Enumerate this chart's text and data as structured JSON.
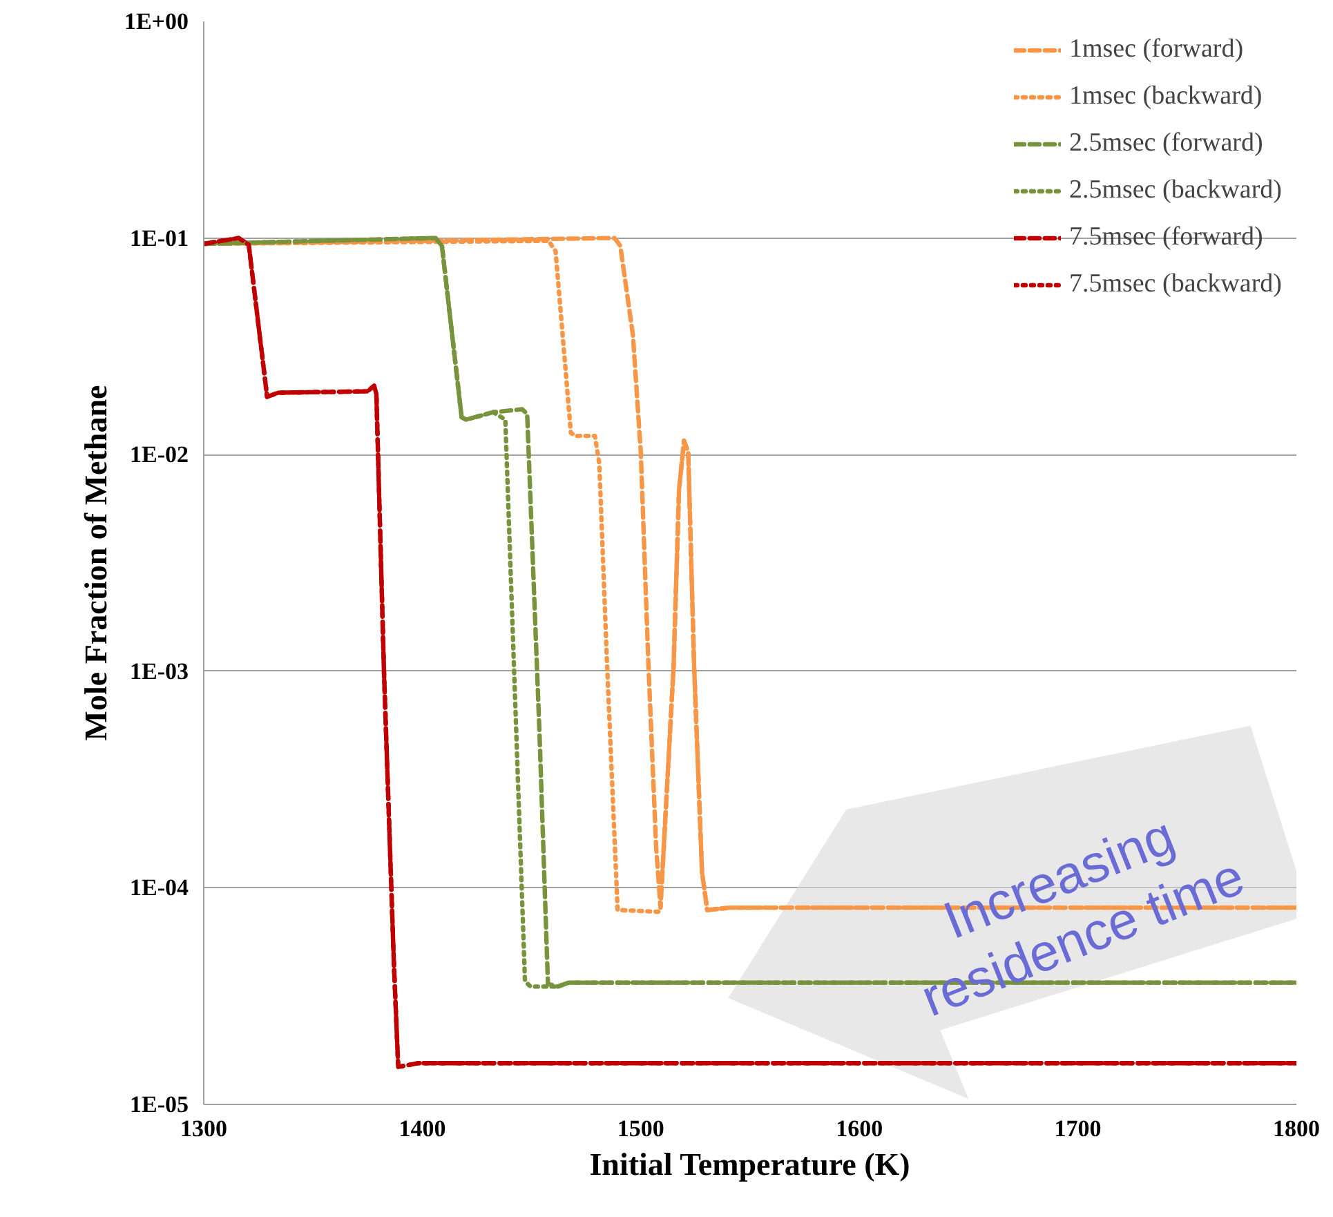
{
  "chart_data": {
    "type": "line",
    "xlabel": "Initial Temperature (K)",
    "ylabel": "Mole Fraction of Methane",
    "log": "y",
    "grid": "y",
    "legend": "top right",
    "xlim": [
      1300,
      1800
    ],
    "xticks": [
      1300,
      1400,
      1500,
      1600,
      1700,
      1800
    ],
    "ylim": [
      1e-05,
      1
    ],
    "yticks": [
      {
        "value": 1,
        "label": "1E+00"
      },
      {
        "value": 0.1,
        "label": "1E-01"
      },
      {
        "value": 0.01,
        "label": "1E-02"
      },
      {
        "value": 0.001,
        "label": "1E-03"
      },
      {
        "value": 0.0001,
        "label": "1E-04"
      },
      {
        "value": 1e-05,
        "label": "1E-05"
      }
    ],
    "annotations": [
      "Increasing residence time"
    ],
    "series": [
      {
        "name": "1msec (forward)",
        "color": "#f79646",
        "line_style": "dashed",
        "x": [
          1300,
          1488,
          1490.6,
          1496.4,
          1500,
          1503.5,
          1507,
          1509,
          1515,
          1517.5,
          1519.8,
          1521.7,
          1524.4,
          1528,
          1530.4,
          1541,
          1800
        ],
        "values": [
          0.094,
          0.1,
          0.092,
          0.0356,
          0.0102,
          0.00106,
          0.000155,
          8.1e-05,
          0.00105,
          0.0069,
          0.0116,
          0.0102,
          0.00105,
          0.000118,
          7.9e-05,
          8.1e-05,
          8.1e-05
        ]
      },
      {
        "name": "1msec (backward)",
        "color": "#f79646",
        "line_style": "dotted",
        "x": [
          1300,
          1457.8,
          1461,
          1468,
          1470,
          1479,
          1481,
          1484.6,
          1489.4,
          1508,
          1509,
          1515,
          1517.5,
          1519.8,
          1521.7,
          1524.4,
          1528,
          1530.4,
          1541,
          1800
        ],
        "values": [
          0.094,
          0.097,
          0.087,
          0.0126,
          0.0122,
          0.0122,
          0.0091,
          0.00105,
          7.9e-05,
          7.75e-05,
          8.1e-05,
          0.00105,
          0.0069,
          0.0116,
          0.0102,
          0.00105,
          0.000118,
          7.9e-05,
          8.1e-05,
          8.1e-05
        ]
      },
      {
        "name": "2.5msec (forward)",
        "color": "#77933c",
        "line_style": "dashed",
        "x": [
          1300,
          1406,
          1409,
          1418,
          1420,
          1432.5,
          1445.7,
          1448,
          1453.6,
          1457.5,
          1462,
          1467,
          1800
        ],
        "values": [
          0.094,
          0.1,
          0.092,
          0.0149,
          0.0145,
          0.0157,
          0.0162,
          0.0154,
          0.00053,
          3.6e-05,
          3.5e-05,
          3.65e-05,
          3.65e-05
        ]
      },
      {
        "name": "2.5msec (backward)",
        "color": "#77933c",
        "line_style": "dotted",
        "x": [
          1300,
          1406,
          1409,
          1418,
          1420,
          1432.5,
          1438,
          1447,
          1449.6,
          1462,
          1467,
          1800
        ],
        "values": [
          0.094,
          0.1,
          0.092,
          0.0149,
          0.0145,
          0.0157,
          0.0145,
          3.7e-05,
          3.5e-05,
          3.5e-05,
          3.65e-05,
          3.65e-05
        ]
      },
      {
        "name": "7.5msec (forward)",
        "color": "#c00000",
        "line_style": "dashed",
        "x": [
          1300,
          1316,
          1320.6,
          1329,
          1334,
          1375,
          1378,
          1379,
          1382.5,
          1387,
          1389,
          1398,
          1800
        ],
        "values": [
          0.094,
          0.1,
          0.093,
          0.0185,
          0.0193,
          0.0196,
          0.0208,
          0.019,
          0.00098,
          4.5e-05,
          1.49e-05,
          1.55e-05,
          1.55e-05
        ]
      },
      {
        "name": "7.5msec (backward)",
        "color": "#c00000",
        "line_style": "dotted",
        "x": [
          1300,
          1316,
          1320.6,
          1329,
          1334,
          1375,
          1378,
          1379,
          1382.5,
          1387,
          1389,
          1398,
          1800
        ],
        "values": [
          0.094,
          0.1,
          0.093,
          0.0185,
          0.0193,
          0.0196,
          0.0208,
          0.019,
          0.00098,
          4.5e-05,
          1.49e-05,
          1.55e-05,
          1.55e-05
        ]
      }
    ]
  }
}
